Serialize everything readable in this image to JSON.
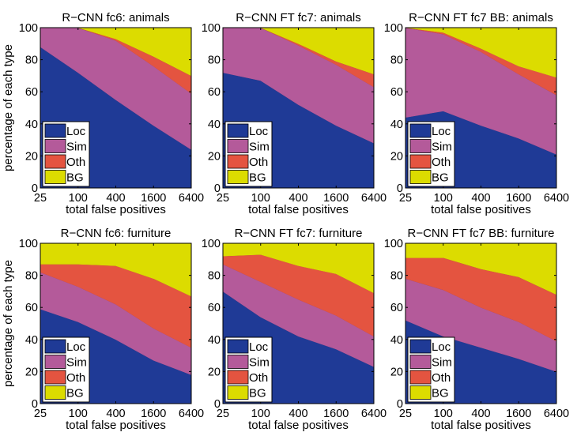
{
  "ylabel": "percentage of each type",
  "chart_data": [
    {
      "type": "area",
      "title": "R−CNN fc6: animals",
      "xlabel": "total false positives",
      "ylabel": "percentage of each type",
      "x_scale": "log",
      "categories": [
        "25",
        "100",
        "400",
        "1600",
        "6400"
      ],
      "x": [
        25,
        100,
        400,
        1600,
        6400
      ],
      "ylim": [
        0,
        100
      ],
      "yticks": [
        "0",
        "20",
        "40",
        "60",
        "80",
        "100"
      ],
      "legend_position": "bottom-left",
      "stacked": true,
      "series": [
        {
          "name": "Loc",
          "values": [
            88,
            72,
            55,
            39,
            24
          ]
        },
        {
          "name": "Sim",
          "values": [
            12,
            28,
            37,
            37,
            35
          ]
        },
        {
          "name": "Oth",
          "values": [
            0,
            0,
            1,
            6,
            11
          ]
        },
        {
          "name": "BG",
          "values": [
            0,
            0,
            7,
            18,
            30
          ]
        }
      ]
    },
    {
      "type": "area",
      "title": "R−CNN FT fc7: animals",
      "xlabel": "total false positives",
      "ylabel": "",
      "x_scale": "log",
      "categories": [
        "25",
        "100",
        "400",
        "1600",
        "6400"
      ],
      "x": [
        25,
        100,
        400,
        1600,
        6400
      ],
      "ylim": [
        0,
        100
      ],
      "yticks": [
        "0",
        "20",
        "40",
        "60",
        "80",
        "100"
      ],
      "legend_position": "bottom-left",
      "stacked": true,
      "series": [
        {
          "name": "Loc",
          "values": [
            72,
            67,
            52,
            39,
            28
          ]
        },
        {
          "name": "Sim",
          "values": [
            28,
            33,
            37,
            38,
            35
          ]
        },
        {
          "name": "Oth",
          "values": [
            0,
            0,
            1,
            2,
            8
          ]
        },
        {
          "name": "BG",
          "values": [
            0,
            0,
            10,
            21,
            29
          ]
        }
      ]
    },
    {
      "type": "area",
      "title": "R−CNN FT fc7 BB: animals",
      "xlabel": "total false positives",
      "ylabel": "",
      "x_scale": "log",
      "categories": [
        "25",
        "100",
        "400",
        "1600",
        "6400"
      ],
      "x": [
        25,
        100,
        400,
        1600,
        6400
      ],
      "ylim": [
        0,
        100
      ],
      "yticks": [
        "0",
        "20",
        "40",
        "60",
        "80",
        "100"
      ],
      "legend_position": "bottom-left",
      "stacked": true,
      "series": [
        {
          "name": "Loc",
          "values": [
            44,
            48,
            39,
            31,
            21
          ]
        },
        {
          "name": "Sim",
          "values": [
            56,
            48,
            46,
            40,
            37
          ]
        },
        {
          "name": "Oth",
          "values": [
            0,
            1,
            2,
            5,
            11
          ]
        },
        {
          "name": "BG",
          "values": [
            0,
            3,
            13,
            24,
            31
          ]
        }
      ]
    },
    {
      "type": "area",
      "title": "R−CNN fc6: furniture",
      "xlabel": "total false positives",
      "ylabel": "percentage of each type",
      "x_scale": "log",
      "categories": [
        "25",
        "100",
        "400",
        "1600",
        "6400"
      ],
      "x": [
        25,
        100,
        400,
        1600,
        6400
      ],
      "ylim": [
        0,
        100
      ],
      "yticks": [
        "0",
        "20",
        "40",
        "60",
        "80",
        "100"
      ],
      "legend_position": "bottom-left",
      "stacked": true,
      "series": [
        {
          "name": "Loc",
          "values": [
            59,
            51,
            40,
            27,
            18
          ]
        },
        {
          "name": "Sim",
          "values": [
            23,
            22,
            22,
            20,
            17
          ]
        },
        {
          "name": "Oth",
          "values": [
            5,
            14,
            24,
            31,
            32
          ]
        },
        {
          "name": "BG",
          "values": [
            13,
            13,
            14,
            22,
            33
          ]
        }
      ]
    },
    {
      "type": "area",
      "title": "R−CNN FT fc7: furniture",
      "xlabel": "total false positives",
      "ylabel": "",
      "x_scale": "log",
      "categories": [
        "25",
        "100",
        "400",
        "1600",
        "6400"
      ],
      "x": [
        25,
        100,
        400,
        1600,
        6400
      ],
      "ylim": [
        0,
        100
      ],
      "yticks": [
        "0",
        "20",
        "40",
        "60",
        "80",
        "100"
      ],
      "legend_position": "bottom-left",
      "stacked": true,
      "series": [
        {
          "name": "Loc",
          "values": [
            70,
            54,
            42,
            34,
            23
          ]
        },
        {
          "name": "Sim",
          "values": [
            17,
            22,
            23,
            21,
            19
          ]
        },
        {
          "name": "Oth",
          "values": [
            5,
            17,
            21,
            26,
            27
          ]
        },
        {
          "name": "BG",
          "values": [
            8,
            7,
            14,
            19,
            31
          ]
        }
      ]
    },
    {
      "type": "area",
      "title": "R−CNN FT fc7 BB: furniture",
      "xlabel": "total false positives",
      "ylabel": "",
      "x_scale": "log",
      "categories": [
        "25",
        "100",
        "400",
        "1600",
        "6400"
      ],
      "x": [
        25,
        100,
        400,
        1600,
        6400
      ],
      "ylim": [
        0,
        100
      ],
      "yticks": [
        "0",
        "20",
        "40",
        "60",
        "80",
        "100"
      ],
      "legend_position": "bottom-left",
      "stacked": true,
      "series": [
        {
          "name": "Loc",
          "values": [
            52,
            42,
            35,
            28,
            20
          ]
        },
        {
          "name": "Sim",
          "values": [
            26,
            29,
            25,
            23,
            19
          ]
        },
        {
          "name": "Oth",
          "values": [
            13,
            20,
            24,
            28,
            29
          ]
        },
        {
          "name": "BG",
          "values": [
            9,
            9,
            16,
            21,
            32
          ]
        }
      ]
    }
  ],
  "colors": {
    "Loc": "#1f3a96",
    "Sim": "#b45a9a",
    "Oth": "#e45440",
    "BG": "#dcdc00"
  }
}
